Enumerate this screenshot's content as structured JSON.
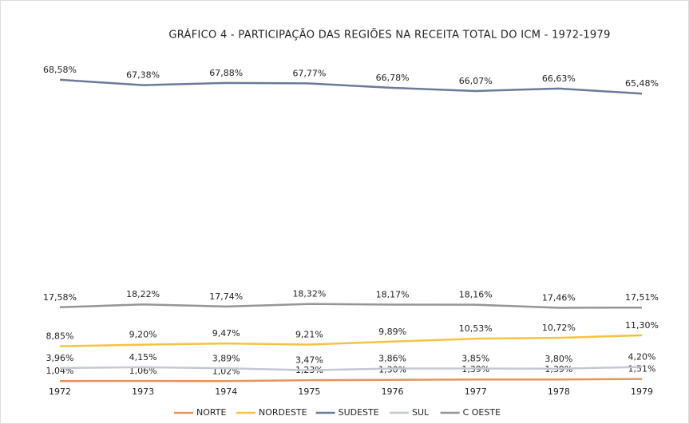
{
  "chart_data": {
    "type": "line",
    "title": "GRÁFICO 4 - PARTICIPAÇÃO DAS REGIÕES NA RECEITA TOTAL DO ICM - 1972-1979",
    "categories": [
      "1972",
      "1973",
      "1974",
      "1975",
      "1976",
      "1977",
      "1978",
      "1979"
    ],
    "ylim": [
      0,
      70
    ],
    "legend": "bottom",
    "series": [
      {
        "name": "NORTE",
        "color": "#e8935a",
        "values": [
          1.04,
          1.06,
          1.02,
          1.23,
          1.3,
          1.39,
          1.39,
          1.51
        ],
        "value_labels": [
          "1,04%",
          "1,06%",
          "1,02%",
          "1,23%",
          "1,30%",
          "1,39%",
          "1,39%",
          "1,51%"
        ]
      },
      {
        "name": "NORDESTE",
        "color": "#f5c342",
        "values": [
          8.85,
          9.2,
          9.47,
          9.21,
          9.89,
          10.53,
          10.72,
          11.3
        ],
        "value_labels": [
          "8,85%",
          "9,20%",
          "9,47%",
          "9,21%",
          "9,89%",
          "10,53%",
          "10,72%",
          "11,30%"
        ]
      },
      {
        "name": "SUDESTE",
        "color": "#6b7a99",
        "values": [
          68.58,
          67.38,
          67.88,
          67.77,
          66.78,
          66.07,
          66.63,
          65.48
        ],
        "value_labels": [
          "68,58%",
          "67,38%",
          "67,88%",
          "67,77%",
          "66,78%",
          "66,07%",
          "66,63%",
          "65,48%"
        ]
      },
      {
        "name": "SUL",
        "color": "#c3c8d8",
        "values": [
          3.96,
          4.15,
          3.89,
          3.47,
          3.86,
          3.85,
          3.8,
          4.2
        ],
        "value_labels": [
          "3,96%",
          "4,15%",
          "3,89%",
          "3,47%",
          "3,86%",
          "3,85%",
          "3,80%",
          "4,20%"
        ]
      },
      {
        "name": "C OESTE",
        "color": "#959595",
        "values": [
          17.58,
          18.22,
          17.74,
          18.32,
          18.17,
          18.16,
          17.46,
          17.51
        ],
        "value_labels": [
          "17,58%",
          "18,22%",
          "17,74%",
          "18,32%",
          "18,17%",
          "18,16%",
          "17,46%",
          "17,51%"
        ]
      }
    ]
  }
}
